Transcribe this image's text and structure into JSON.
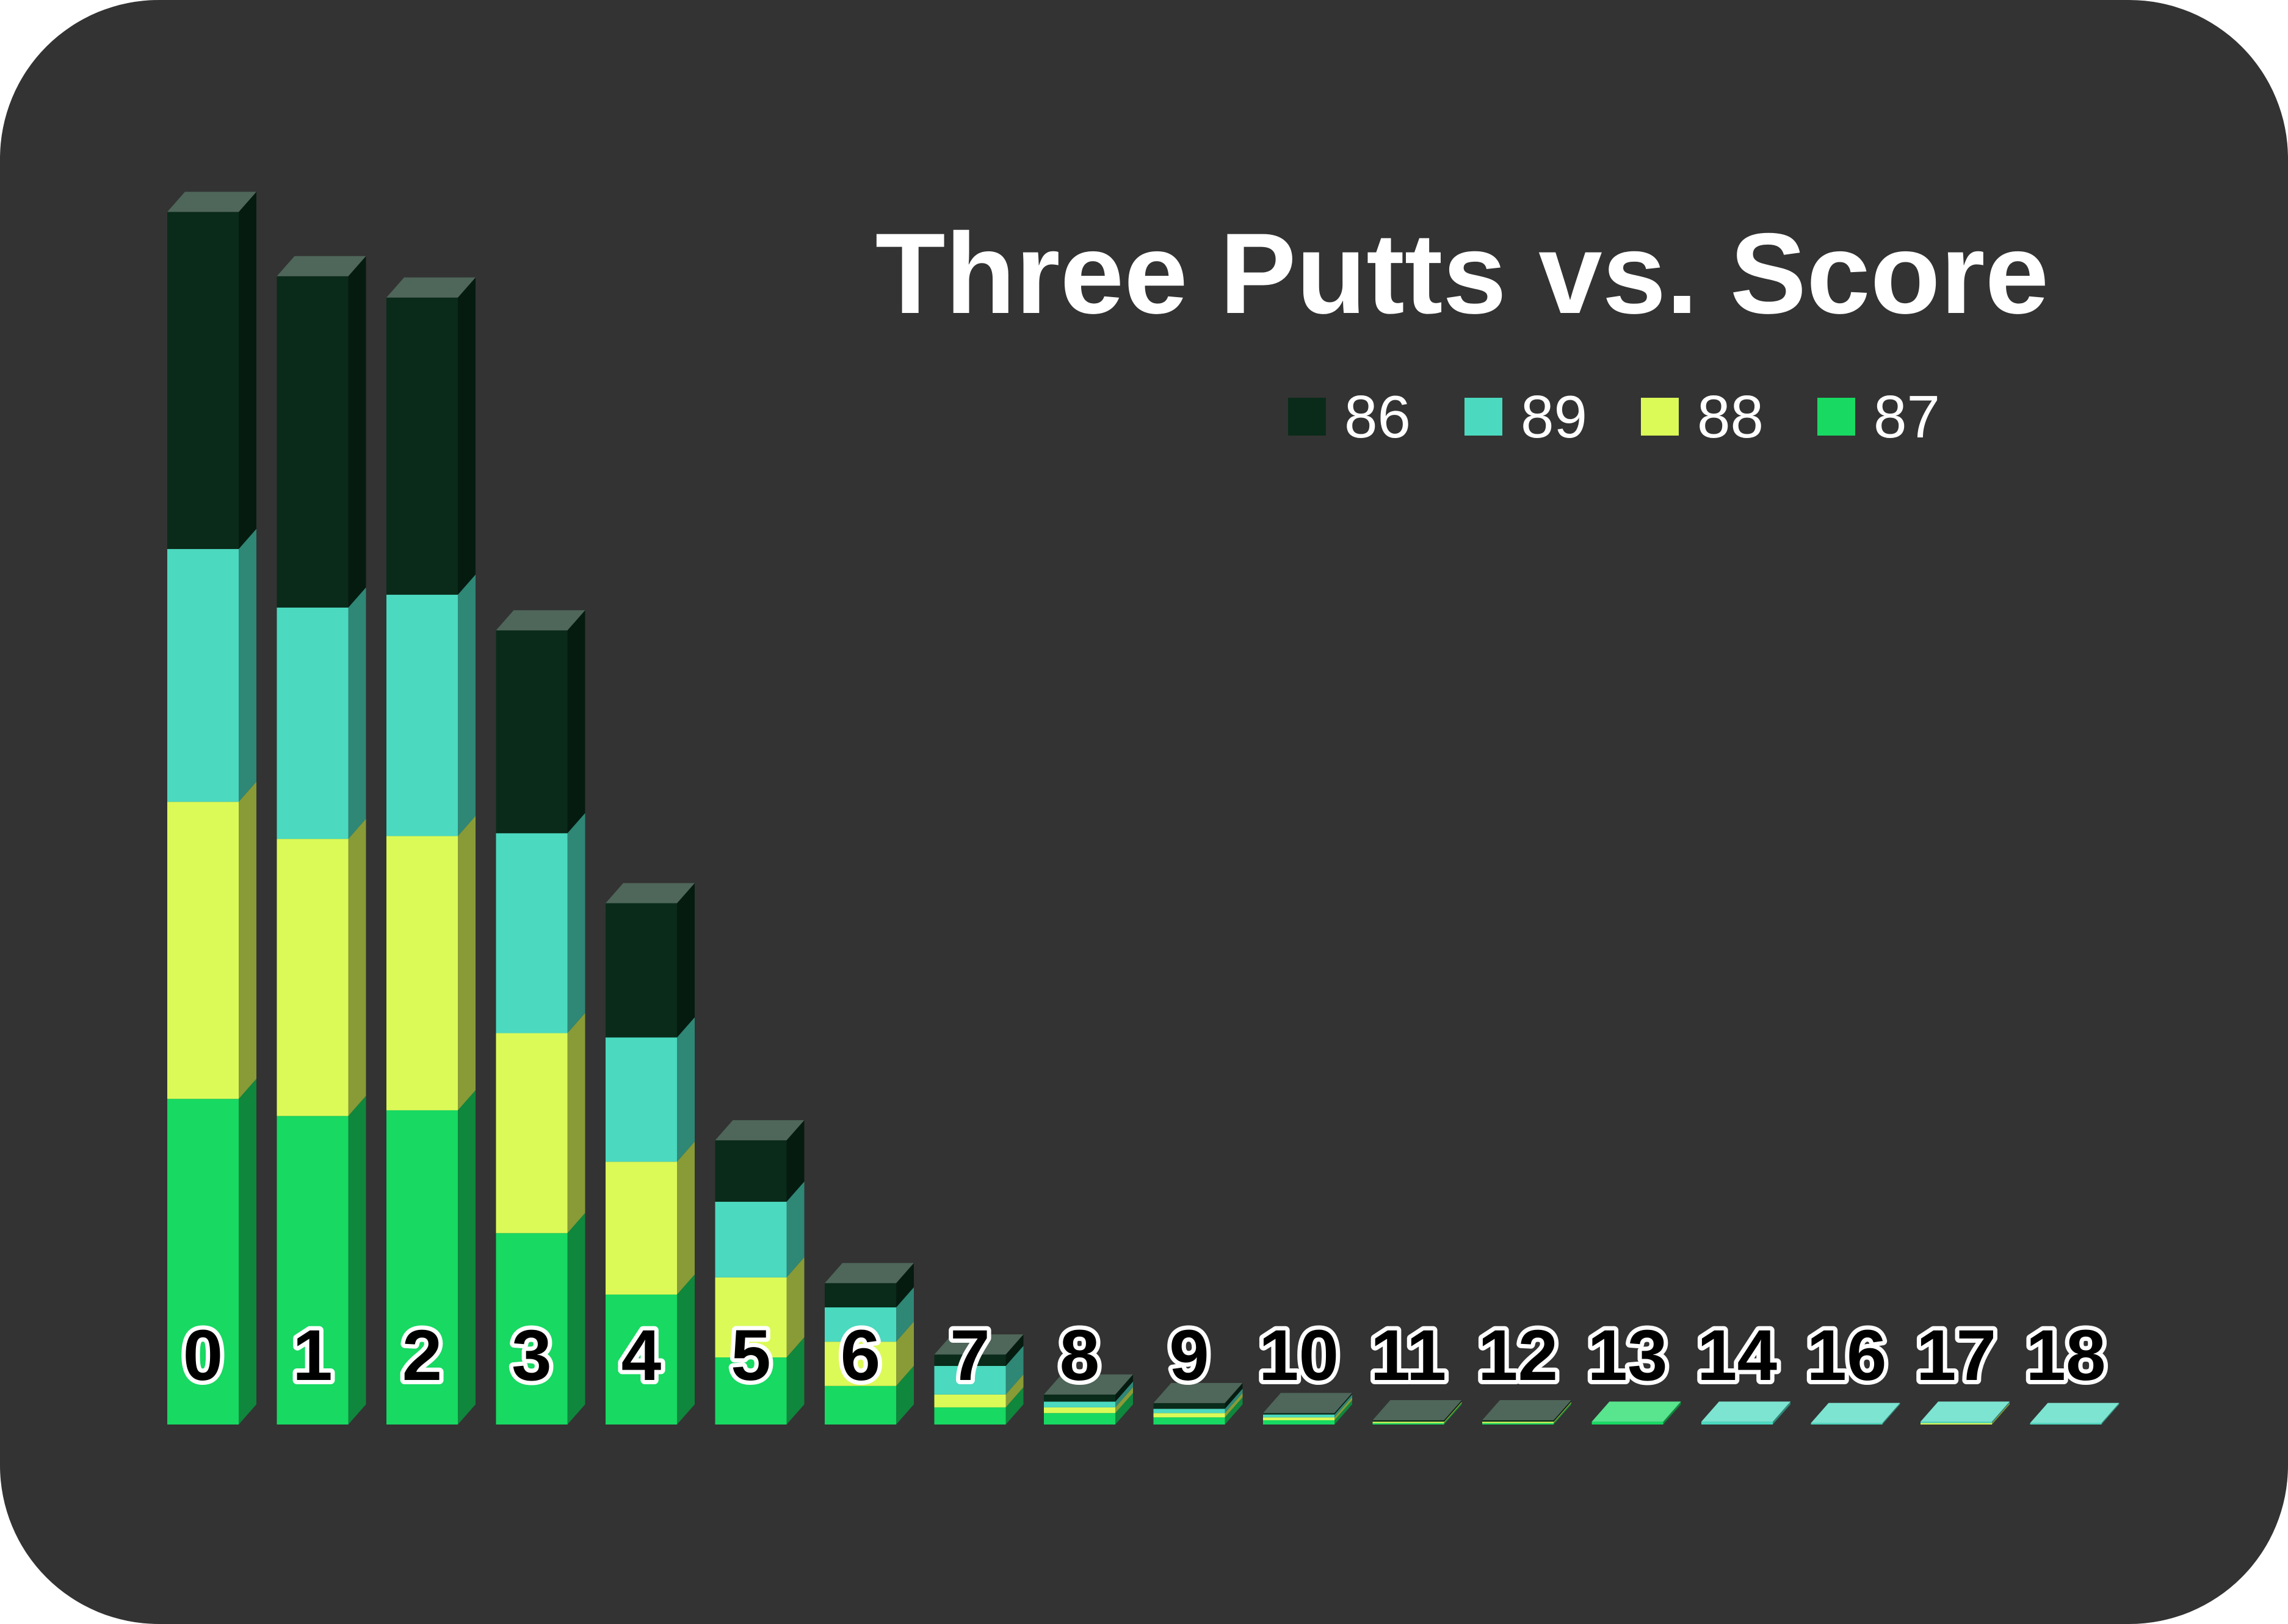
{
  "chart_data": {
    "type": "bar",
    "stacked": true,
    "three_d": true,
    "title": "Three Putts vs. Score",
    "xlabel": "",
    "ylabel": "",
    "categories": [
      "0",
      "1",
      "2",
      "3",
      "4",
      "5",
      "6",
      "7",
      "8",
      "9",
      "10",
      "11",
      "12",
      "13",
      "14",
      "16",
      "17",
      "18"
    ],
    "ylim": [
      0,
      85
    ],
    "grid": false,
    "legend_position": "top-right",
    "series": [
      {
        "name": "87",
        "color": "#18d962",
        "values": [
          22.8,
          21.6,
          22.0,
          13.4,
          9.1,
          4.7,
          2.7,
          1.2,
          0.8,
          0.5,
          0.3,
          0.1,
          0.1,
          0.2,
          0.0,
          0.0,
          0.0,
          0.0
        ]
      },
      {
        "name": "88",
        "color": "#dbfa58",
        "values": [
          20.8,
          19.4,
          19.2,
          14.0,
          9.3,
          5.6,
          3.1,
          0.9,
          0.4,
          0.3,
          0.2,
          0.1,
          0.1,
          0.0,
          0.0,
          0.0,
          0.1,
          0.0
        ]
      },
      {
        "name": "89",
        "color": "#4bd9bf",
        "values": [
          17.7,
          16.2,
          16.9,
          14.0,
          8.7,
          5.3,
          2.4,
          2.0,
          0.4,
          0.3,
          0.2,
          0.0,
          0.0,
          0.0,
          0.2,
          0.1,
          0.1,
          0.1
        ]
      },
      {
        "name": "86",
        "color": "#0a2b1a",
        "values": [
          23.6,
          23.2,
          20.8,
          14.2,
          9.4,
          4.3,
          1.7,
          0.8,
          0.5,
          0.4,
          0.1,
          0.1,
          0.1,
          0.0,
          0.0,
          0.0,
          0.0,
          0.0
        ]
      }
    ],
    "legend_order": [
      "86",
      "89",
      "88",
      "87"
    ]
  }
}
